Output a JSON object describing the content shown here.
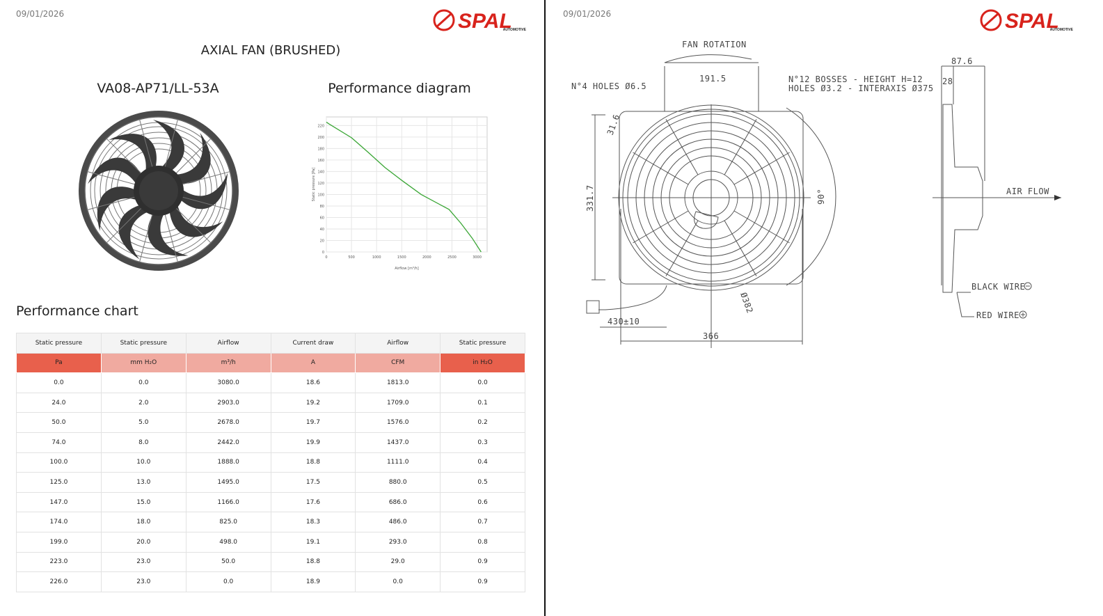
{
  "left": {
    "date": "09/01/2026",
    "logo": "SPAL",
    "logo_sub": "AUTOMOTIVE",
    "title": "AXIAL FAN (BRUSHED)",
    "model": "VA08-AP71/LL-53A",
    "diagram_title": "Performance diagram",
    "table_title": "Performance chart"
  },
  "chart_data": {
    "type": "line",
    "x_label": "Airflow [m³/h]",
    "y_label": "Static pressure [Pa]",
    "x": [
      3080,
      2903,
      2678,
      2442,
      1888,
      1495,
      1166,
      825,
      498,
      50,
      0
    ],
    "series": [
      {
        "color": "#3aa635",
        "values": [
          0,
          24,
          50,
          74,
          100,
          125,
          147,
          174,
          199,
          223,
          226
        ]
      }
    ],
    "xlim": [
      0,
      3200
    ],
    "ylim": [
      0,
      235
    ],
    "xticks": [
      0,
      500,
      1000,
      1500,
      2000,
      2500,
      3000
    ],
    "yticks": [
      0,
      20,
      40,
      60,
      80,
      100,
      120,
      140,
      160,
      180,
      200,
      220
    ],
    "grid": true
  },
  "table": {
    "headers": [
      "Static pressure",
      "Static pressure",
      "Airflow",
      "Current draw",
      "Airflow",
      "Static pressure"
    ],
    "units": [
      "Pa",
      "mm H₂O",
      "m³/h",
      "A",
      "CFM",
      "in H₂O"
    ],
    "rows": [
      [
        "0.0",
        "0.0",
        "3080.0",
        "18.6",
        "1813.0",
        "0.0"
      ],
      [
        "24.0",
        "2.0",
        "2903.0",
        "19.2",
        "1709.0",
        "0.1"
      ],
      [
        "50.0",
        "5.0",
        "2678.0",
        "19.7",
        "1576.0",
        "0.2"
      ],
      [
        "74.0",
        "8.0",
        "2442.0",
        "19.9",
        "1437.0",
        "0.3"
      ],
      [
        "100.0",
        "10.0",
        "1888.0",
        "18.8",
        "1111.0",
        "0.4"
      ],
      [
        "125.0",
        "13.0",
        "1495.0",
        "17.5",
        "880.0",
        "0.5"
      ],
      [
        "147.0",
        "15.0",
        "1166.0",
        "17.6",
        "686.0",
        "0.6"
      ],
      [
        "174.0",
        "18.0",
        "825.0",
        "18.3",
        "486.0",
        "0.7"
      ],
      [
        "199.0",
        "20.0",
        "498.0",
        "19.1",
        "293.0",
        "0.8"
      ],
      [
        "223.0",
        "23.0",
        "50.0",
        "18.8",
        "29.0",
        "0.9"
      ],
      [
        "226.0",
        "23.0",
        "0.0",
        "18.9",
        "0.0",
        "0.9"
      ]
    ]
  },
  "right": {
    "date": "09/01/2026",
    "logo": "SPAL",
    "logo_sub": "AUTOMOTIVE",
    "drawing": {
      "fan_rotation": "FAN ROTATION",
      "holes": "N°4 HOLES Ø6.5",
      "width_top": "191.5",
      "bosses": "N°12 BOSSES - HEIGHT H=12",
      "bosses_holes": "HOLES Ø3.2 - INTERAXIS Ø375",
      "d31": "31.6",
      "height": "331.7",
      "angle": "90°",
      "diameter": "Ø382",
      "cable": "430±10",
      "width": "366",
      "depth": "87.6",
      "depth2": "28",
      "air_flow": "AIR FLOW",
      "black_wire": "BLACK WIRE",
      "red_wire": "RED WIRE"
    }
  }
}
